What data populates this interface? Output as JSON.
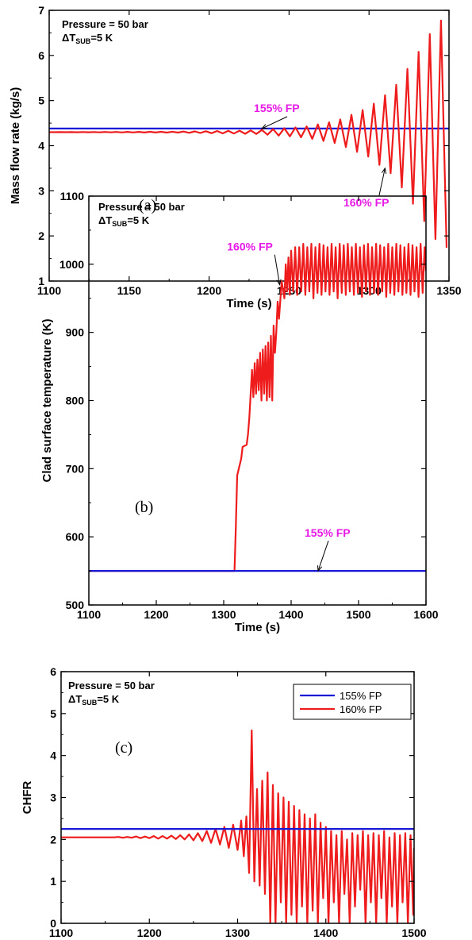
{
  "colors": {
    "blue": "#1a1ad6",
    "red": "#ee1c1c",
    "annotation": "#e619e6",
    "axis": "#000000"
  },
  "chart_data": [
    {
      "id": "a",
      "type": "line",
      "panel_label": "(a)",
      "xlabel": "Time (s)",
      "ylabel": "Mass flow rate (kg/s)",
      "xlim": [
        1100,
        1350
      ],
      "ylim": [
        1,
        7
      ],
      "xticks": [
        1100,
        1150,
        1200,
        1250,
        1300,
        1350
      ],
      "yticks": [
        1,
        2,
        3,
        4,
        5,
        6,
        7
      ],
      "note_line1": "Pressure = 50 bar",
      "note_delta": "ΔT",
      "note_sub": "SUB",
      "note_rest": "=5 K",
      "annotations": [
        {
          "text": "155% FP",
          "x": 1228,
          "y": 4.75,
          "arrow_to": [
            1233,
            4.38
          ]
        },
        {
          "text": "160% FP",
          "x": 1284,
          "y": 2.65,
          "arrow_to": [
            1310,
            3.5
          ]
        }
      ],
      "series": [
        {
          "name": "155% FP",
          "color": "blue",
          "kind": "constant",
          "value": 4.38
        },
        {
          "name": "160% FP",
          "color": "red",
          "kind": "oscillation",
          "x_start": 1100,
          "x_end": 1350,
          "period": 7,
          "base": 4.3,
          "envelope": [
            [
              1100,
              0.0
            ],
            [
              1180,
              0.01
            ],
            [
              1230,
              0.04
            ],
            [
              1260,
              0.12
            ],
            [
              1280,
              0.25
            ],
            [
              1300,
              0.55
            ],
            [
              1315,
              0.95
            ],
            [
              1325,
              1.45
            ],
            [
              1335,
              2.0
            ],
            [
              1342,
              2.4
            ],
            [
              1350,
              2.6
            ]
          ]
        }
      ]
    },
    {
      "id": "b",
      "type": "line",
      "panel_label": "(b)",
      "xlabel": "Time (s)",
      "ylabel": "Clad surface temperature (K)",
      "xlim": [
        1100,
        1600
      ],
      "ylim": [
        500,
        1100
      ],
      "xticks": [
        1100,
        1200,
        1300,
        1400,
        1500,
        1600
      ],
      "yticks": [
        500,
        600,
        700,
        800,
        900,
        1000,
        1100
      ],
      "note_line1": "Pressure = 50 bar",
      "note_delta": "ΔT",
      "note_sub": "SUB",
      "note_rest": "=5 K",
      "annotations": [
        {
          "text": "160% FP",
          "x": 1305,
          "y": 1020,
          "arrow_to": [
            1383,
            970
          ]
        },
        {
          "text": "155% FP",
          "x": 1420,
          "y": 600,
          "arrow_to": [
            1440,
            550
          ]
        }
      ],
      "series": [
        {
          "name": "155% FP",
          "color": "blue",
          "kind": "constant",
          "value": 550
        },
        {
          "name": "160% FP",
          "color": "red",
          "kind": "points",
          "points": [
            [
              1100,
              550
            ],
            [
              1316,
              550
            ],
            [
              1318,
              615
            ],
            [
              1320,
              690
            ],
            [
              1326,
              715
            ],
            [
              1328,
              732
            ],
            [
              1334,
              735
            ],
            [
              1336,
              750
            ],
            [
              1338,
              775
            ],
            [
              1340,
              810
            ],
            [
              1342,
              845
            ],
            [
              1344,
              805
            ],
            [
              1346,
              855
            ],
            [
              1348,
              810
            ],
            [
              1350,
              860
            ],
            [
              1352,
              815
            ],
            [
              1354,
              870
            ],
            [
              1356,
              800
            ],
            [
              1358,
              875
            ],
            [
              1360,
              810
            ],
            [
              1362,
              880
            ],
            [
              1364,
              800
            ],
            [
              1366,
              885
            ],
            [
              1368,
              805
            ],
            [
              1370,
              895
            ],
            [
              1372,
              800
            ],
            [
              1374,
              910
            ],
            [
              1376,
              870
            ],
            [
              1378,
              900
            ],
            [
              1380,
              945
            ],
            [
              1382,
              920
            ],
            [
              1386,
              975
            ],
            [
              1390,
              950
            ],
            [
              1392,
              1000
            ],
            [
              1394,
              960
            ],
            [
              1396,
              1010
            ],
            [
              1398,
              955
            ],
            [
              1400,
              1020
            ],
            [
              1403,
              960
            ],
            [
              1406,
              1025
            ],
            [
              1409,
              955
            ],
            [
              1412,
              1025
            ],
            [
              1415,
              960
            ],
            [
              1418,
              1030
            ],
            [
              1421,
              955
            ],
            [
              1424,
              1025
            ],
            [
              1427,
              960
            ],
            [
              1430,
              1030
            ],
            [
              1433,
              950
            ],
            [
              1436,
              1025
            ],
            [
              1439,
              958
            ],
            [
              1442,
              1030
            ],
            [
              1445,
              955
            ],
            [
              1448,
              1028
            ],
            [
              1451,
              960
            ],
            [
              1454,
              1025
            ],
            [
              1457,
              955
            ],
            [
              1460,
              1030
            ],
            [
              1463,
              960
            ],
            [
              1466,
              1025
            ],
            [
              1469,
              950
            ],
            [
              1472,
              1030
            ],
            [
              1475,
              958
            ],
            [
              1478,
              1028
            ],
            [
              1481,
              955
            ],
            [
              1484,
              1030
            ],
            [
              1487,
              960
            ],
            [
              1490,
              1025
            ],
            [
              1493,
              955
            ],
            [
              1496,
              1030
            ],
            [
              1499,
              958
            ],
            [
              1502,
              1025
            ],
            [
              1505,
              952
            ],
            [
              1508,
              1028
            ],
            [
              1511,
              960
            ],
            [
              1514,
              1030
            ],
            [
              1517,
              955
            ],
            [
              1520,
              1025
            ],
            [
              1523,
              958
            ],
            [
              1526,
              1030
            ],
            [
              1529,
              955
            ],
            [
              1532,
              1028
            ],
            [
              1535,
              960
            ],
            [
              1538,
              1025
            ],
            [
              1541,
              952
            ],
            [
              1544,
              1030
            ],
            [
              1547,
              958
            ],
            [
              1550,
              1025
            ],
            [
              1553,
              955
            ],
            [
              1556,
              1030
            ],
            [
              1559,
              960
            ],
            [
              1562,
              1028
            ],
            [
              1565,
              955
            ],
            [
              1568,
              1025
            ],
            [
              1571,
              958
            ],
            [
              1574,
              1030
            ],
            [
              1577,
              955
            ],
            [
              1580,
              1028
            ],
            [
              1583,
              960
            ],
            [
              1586,
              1025
            ],
            [
              1589,
              952
            ],
            [
              1592,
              1030
            ],
            [
              1595,
              958
            ],
            [
              1598,
              1025
            ],
            [
              1600,
              990
            ]
          ]
        }
      ]
    },
    {
      "id": "c",
      "type": "line",
      "panel_label": "(c)",
      "xlabel": "Time (s)",
      "ylabel": "CHFR",
      "xlim": [
        1100,
        1500
      ],
      "ylim": [
        0,
        6
      ],
      "xticks": [
        1100,
        1200,
        1300,
        1400,
        1500
      ],
      "yticks": [
        0,
        1,
        2,
        3,
        4,
        5,
        6
      ],
      "note_line1": "Pressure = 50 bar",
      "note_delta": "ΔT",
      "note_sub": "SUB",
      "note_rest": "=5 K",
      "legend": {
        "position": "top-right",
        "entries": [
          "155% FP",
          "160% FP"
        ]
      },
      "series": [
        {
          "name": "155% FP",
          "color": "blue",
          "kind": "constant",
          "value": 2.25
        },
        {
          "name": "160% FP",
          "color": "red",
          "kind": "points",
          "points": [
            [
              1100,
              2.05
            ],
            [
              1160,
              2.05
            ],
            [
              1165,
              2.06
            ],
            [
              1170,
              2.04
            ],
            [
              1175,
              2.06
            ],
            [
              1180,
              2.04
            ],
            [
              1185,
              2.07
            ],
            [
              1190,
              2.03
            ],
            [
              1195,
              2.07
            ],
            [
              1200,
              2.03
            ],
            [
              1205,
              2.08
            ],
            [
              1210,
              2.02
            ],
            [
              1215,
              2.08
            ],
            [
              1220,
              2.02
            ],
            [
              1225,
              2.09
            ],
            [
              1230,
              2.01
            ],
            [
              1235,
              2.1
            ],
            [
              1240,
              2.0
            ],
            [
              1245,
              2.12
            ],
            [
              1250,
              1.98
            ],
            [
              1255,
              2.15
            ],
            [
              1260,
              1.96
            ],
            [
              1265,
              2.2
            ],
            [
              1270,
              1.92
            ],
            [
              1275,
              2.25
            ],
            [
              1280,
              1.88
            ],
            [
              1285,
              2.3
            ],
            [
              1290,
              1.8
            ],
            [
              1295,
              2.35
            ],
            [
              1300,
              1.75
            ],
            [
              1304,
              2.45
            ],
            [
              1307,
              1.6
            ],
            [
              1310,
              2.55
            ],
            [
              1313,
              1.2
            ],
            [
              1316,
              4.6
            ],
            [
              1319,
              1.0
            ],
            [
              1322,
              3.2
            ],
            [
              1325,
              0.9
            ],
            [
              1328,
              3.4
            ],
            [
              1331,
              0.7
            ],
            [
              1334,
              3.6
            ],
            [
              1337,
              0.0
            ],
            [
              1340,
              3.3
            ],
            [
              1343,
              0.0
            ],
            [
              1346,
              3.1
            ],
            [
              1349,
              0.5
            ],
            [
              1352,
              3.0
            ],
            [
              1355,
              0.0
            ],
            [
              1358,
              2.9
            ],
            [
              1361,
              0.2
            ],
            [
              1364,
              2.8
            ],
            [
              1367,
              0.0
            ],
            [
              1370,
              2.7
            ],
            [
              1373,
              0.4
            ],
            [
              1376,
              2.6
            ],
            [
              1379,
              0.0
            ],
            [
              1382,
              2.5
            ],
            [
              1385,
              0.3
            ],
            [
              1388,
              2.6
            ],
            [
              1391,
              0.0
            ],
            [
              1394,
              2.4
            ],
            [
              1397,
              0.6
            ],
            [
              1400,
              2.3
            ],
            [
              1403,
              0.0
            ],
            [
              1406,
              2.2
            ],
            [
              1409,
              0.5
            ],
            [
              1412,
              2.1
            ],
            [
              1415,
              0.0
            ],
            [
              1418,
              2.2
            ],
            [
              1421,
              0.7
            ],
            [
              1424,
              2.0
            ],
            [
              1427,
              0.0
            ],
            [
              1430,
              2.15
            ],
            [
              1433,
              0.4
            ],
            [
              1436,
              2.1
            ],
            [
              1439,
              0.8
            ],
            [
              1442,
              2.2
            ],
            [
              1445,
              0.0
            ],
            [
              1448,
              2.1
            ],
            [
              1451,
              0.5
            ],
            [
              1454,
              2.15
            ],
            [
              1457,
              0.0
            ],
            [
              1460,
              2.1
            ],
            [
              1463,
              0.6
            ],
            [
              1466,
              2.2
            ],
            [
              1469,
              0.0
            ],
            [
              1472,
              2.05
            ],
            [
              1475,
              0.4
            ],
            [
              1478,
              2.15
            ],
            [
              1481,
              0.0
            ],
            [
              1484,
              2.1
            ],
            [
              1487,
              0.5
            ],
            [
              1490,
              2.15
            ],
            [
              1493,
              0.0
            ],
            [
              1496,
              2.1
            ],
            [
              1499,
              0.2
            ],
            [
              1500,
              1.8
            ]
          ]
        }
      ]
    }
  ]
}
